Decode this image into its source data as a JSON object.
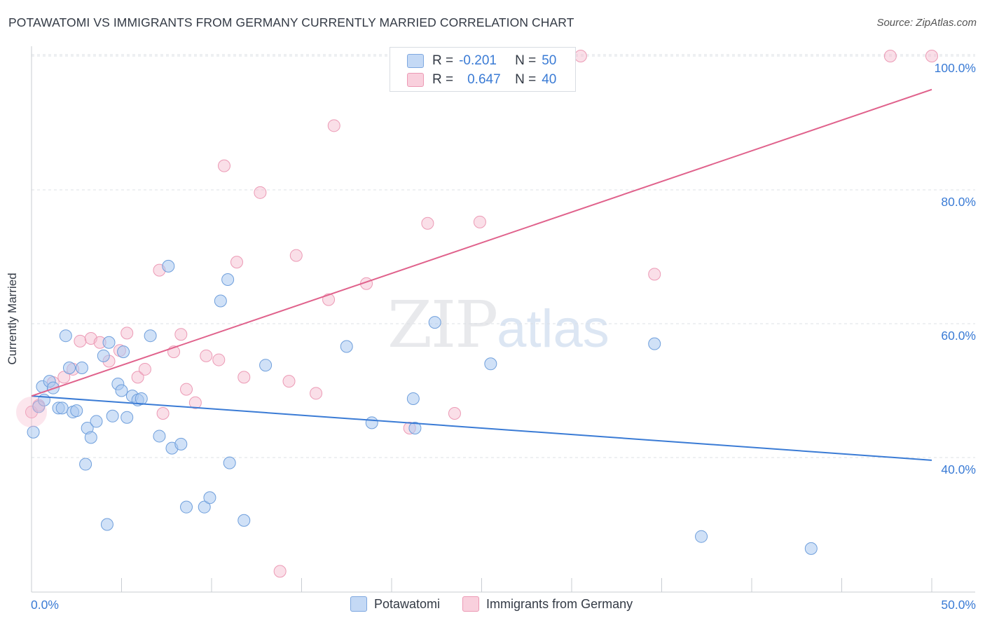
{
  "title": "POTAWATOMI VS IMMIGRANTS FROM GERMANY CURRENTLY MARRIED CORRELATION CHART",
  "source": "Source: ZipAtlas.com",
  "watermark": {
    "zip": "ZIP",
    "atlas": "atlas"
  },
  "legend": {
    "rows": [
      {
        "r_label": "R =",
        "r_value": "-0.201",
        "n_label": "N =",
        "n_value": "50",
        "color": "#a9c8f0"
      },
      {
        "r_label": "R =",
        "r_value": "0.647",
        "n_label": "N =",
        "n_value": "40",
        "color": "#f5b8cb"
      }
    ]
  },
  "bottom_legend": [
    "Potawatomi",
    "Immigrants from Germany"
  ],
  "chart_data": {
    "type": "scatter",
    "title": "POTAWATOMI VS IMMIGRANTS FROM GERMANY CURRENTLY MARRIED CORRELATION CHART",
    "xlabel": "",
    "ylabel": "Currently Married",
    "xlim": [
      0,
      50
    ],
    "ylim": [
      20,
      102
    ],
    "x_tick_labels": [
      "0.0%",
      "50.0%"
    ],
    "y_ticks": [
      40,
      60,
      80,
      100
    ],
    "y_tick_labels": [
      "40.0%",
      "60.0%",
      "80.0%",
      "100.0%"
    ],
    "grid": true,
    "legend_position": "top-center",
    "colors": {
      "potawatomi": "#3a7bd5",
      "potawatomi_fill": "#a9c8f0",
      "germany": "#e0628c",
      "germany_fill": "#f5b8cb",
      "tick_label": "#3a7bd5"
    },
    "series": [
      {
        "name": "Potawatomi",
        "trend": {
          "x": [
            0,
            50
          ],
          "y": [
            49.2,
            39.6
          ]
        },
        "points": [
          [
            0.1,
            43.8
          ],
          [
            0.4,
            47.6
          ],
          [
            0.6,
            50.6
          ],
          [
            0.7,
            48.6
          ],
          [
            1.0,
            51.4
          ],
          [
            1.2,
            50.4
          ],
          [
            1.5,
            47.4
          ],
          [
            1.7,
            47.4
          ],
          [
            1.9,
            58.2
          ],
          [
            2.1,
            53.4
          ],
          [
            2.3,
            46.8
          ],
          [
            2.5,
            47.0
          ],
          [
            2.8,
            53.4
          ],
          [
            3.0,
            39.0
          ],
          [
            3.1,
            44.4
          ],
          [
            3.3,
            43.0
          ],
          [
            3.6,
            45.4
          ],
          [
            4.0,
            55.2
          ],
          [
            4.2,
            30.0
          ],
          [
            4.3,
            57.2
          ],
          [
            4.5,
            46.2
          ],
          [
            4.8,
            51.0
          ],
          [
            5.0,
            50.0
          ],
          [
            5.1,
            55.8
          ],
          [
            5.3,
            46.0
          ],
          [
            5.6,
            49.2
          ],
          [
            5.9,
            48.6
          ],
          [
            6.1,
            48.8
          ],
          [
            6.6,
            58.2
          ],
          [
            7.1,
            43.2
          ],
          [
            7.8,
            41.4
          ],
          [
            7.6,
            68.6
          ],
          [
            8.3,
            42.0
          ],
          [
            8.6,
            32.6
          ],
          [
            9.6,
            32.6
          ],
          [
            9.9,
            34.0
          ],
          [
            10.5,
            63.4
          ],
          [
            10.9,
            66.6
          ],
          [
            11.0,
            39.2
          ],
          [
            11.8,
            30.6
          ],
          [
            13.0,
            53.8
          ],
          [
            17.5,
            56.6
          ],
          [
            18.9,
            45.2
          ],
          [
            21.2,
            48.8
          ],
          [
            21.3,
            44.4
          ],
          [
            22.4,
            60.2
          ],
          [
            25.5,
            54.0
          ],
          [
            34.6,
            57.0
          ],
          [
            37.2,
            28.2
          ],
          [
            43.3,
            26.4
          ]
        ]
      },
      {
        "name": "Immigrants from Germany",
        "trend": {
          "x": [
            0,
            50
          ],
          "y": [
            49.2,
            95.0
          ]
        },
        "points": [
          [
            0.0,
            46.8
          ],
          [
            0.4,
            47.8
          ],
          [
            1.2,
            51.2
          ],
          [
            1.8,
            52.0
          ],
          [
            2.3,
            53.2
          ],
          [
            2.7,
            57.4
          ],
          [
            3.3,
            57.8
          ],
          [
            3.8,
            57.2
          ],
          [
            4.3,
            54.4
          ],
          [
            4.9,
            56.0
          ],
          [
            5.3,
            58.6
          ],
          [
            5.9,
            52.0
          ],
          [
            6.3,
            53.2
          ],
          [
            7.1,
            68.0
          ],
          [
            7.3,
            46.6
          ],
          [
            7.9,
            55.8
          ],
          [
            8.3,
            58.4
          ],
          [
            8.6,
            50.2
          ],
          [
            9.1,
            48.2
          ],
          [
            9.7,
            55.2
          ],
          [
            10.4,
            54.6
          ],
          [
            10.7,
            83.6
          ],
          [
            11.4,
            69.2
          ],
          [
            11.8,
            52.0
          ],
          [
            12.7,
            79.6
          ],
          [
            13.8,
            23.0
          ],
          [
            14.3,
            51.4
          ],
          [
            14.7,
            70.2
          ],
          [
            15.8,
            49.6
          ],
          [
            16.5,
            63.6
          ],
          [
            16.8,
            89.6
          ],
          [
            18.6,
            66.0
          ],
          [
            21.0,
            44.4
          ],
          [
            22.0,
            75.0
          ],
          [
            23.5,
            46.6
          ],
          [
            24.9,
            75.2
          ],
          [
            30.5,
            100.0
          ],
          [
            34.6,
            67.4
          ],
          [
            47.7,
            100.0
          ],
          [
            50.0,
            100.0
          ]
        ]
      }
    ]
  }
}
